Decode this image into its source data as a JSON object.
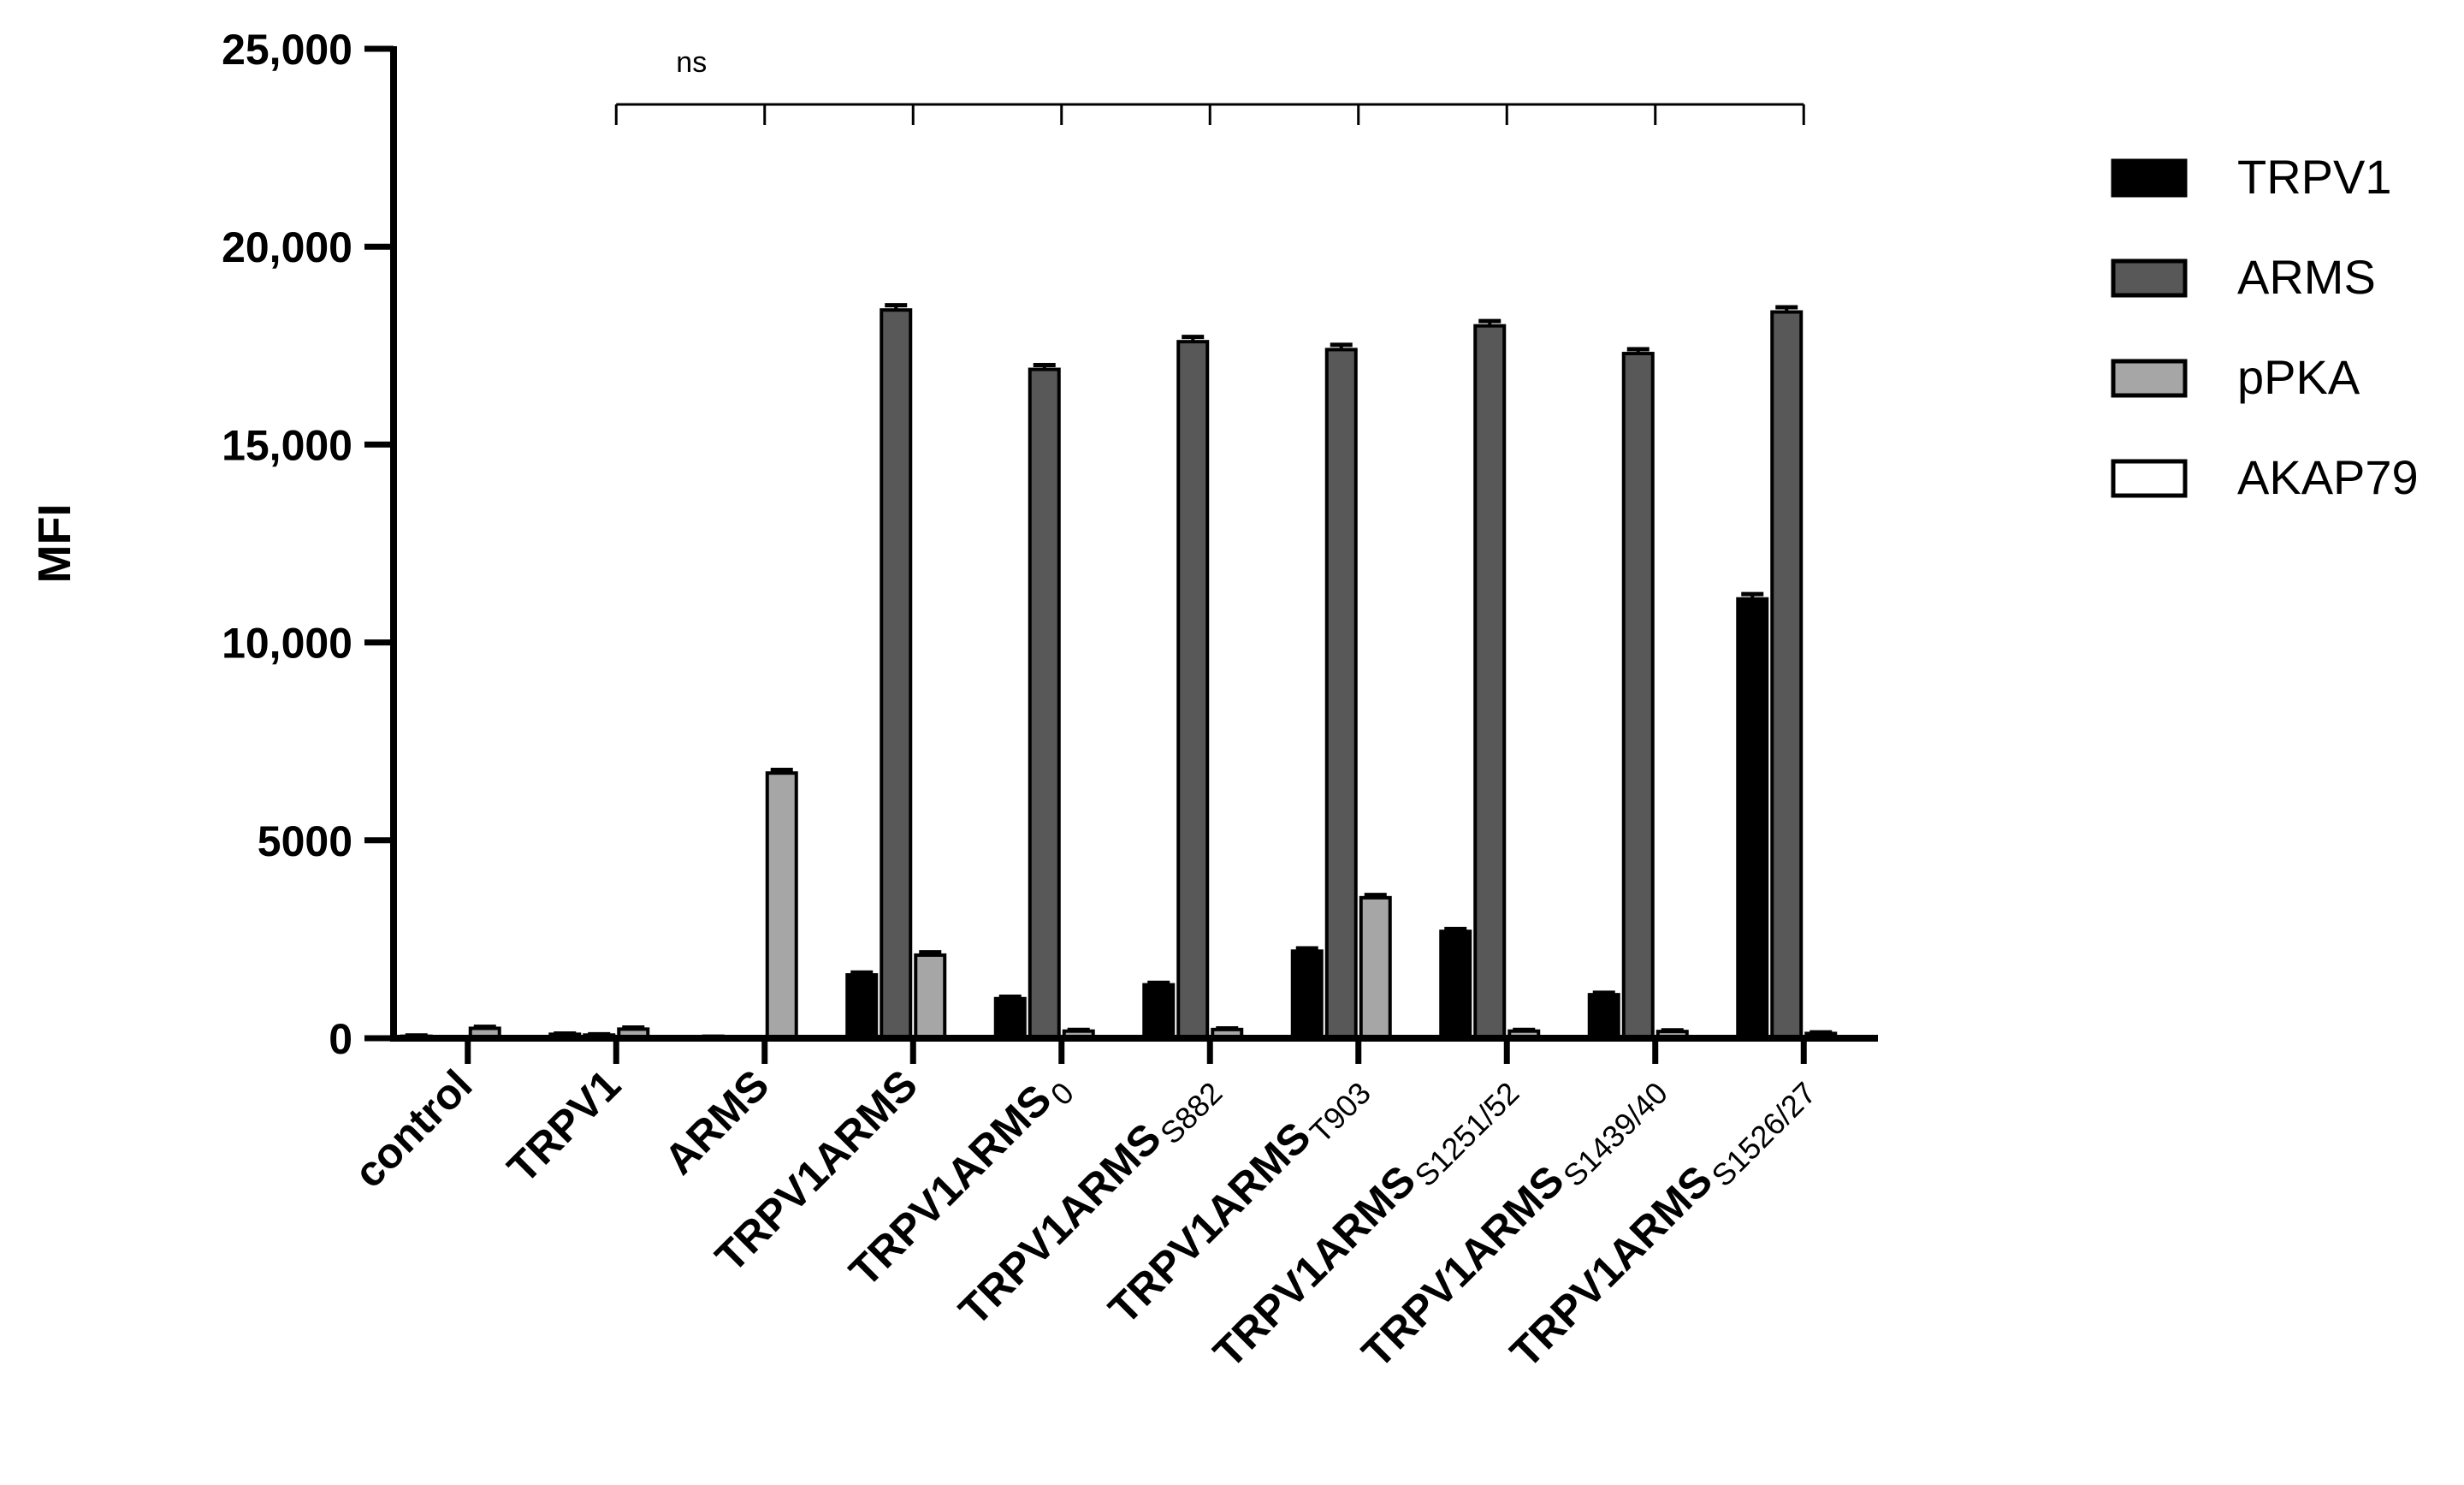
{
  "chart_data": {
    "type": "bar",
    "title": "",
    "xlabel": "",
    "ylabel": "MFI",
    "ylim": [
      0,
      25000
    ],
    "yticks": [
      0,
      5000,
      10000,
      15000,
      20000,
      25000
    ],
    "ytick_labels": [
      "0",
      "5000",
      "10,000",
      "15,000",
      "20,000",
      "25,000"
    ],
    "categories": [
      {
        "main": "control",
        "sub": ""
      },
      {
        "main": "TRPV1",
        "sub": ""
      },
      {
        "main": "ARMS",
        "sub": ""
      },
      {
        "main": "TRPV1ARMS",
        "sub": ""
      },
      {
        "main": "TRPV1ARMS",
        "sub": "0"
      },
      {
        "main": "TRPV1ARMS",
        "sub": "S882"
      },
      {
        "main": "TRPV1ARMS",
        "sub": "T903"
      },
      {
        "main": "TRPV1ARMS",
        "sub": "S1251/52"
      },
      {
        "main": "TRPV1ARMS",
        "sub": "S1439/40"
      },
      {
        "main": "TRPV1ARMS",
        "sub": "S1526/27"
      }
    ],
    "series": [
      {
        "name": "TRPV1",
        "color": "#000000",
        "values": [
          50,
          100,
          30,
          1600,
          1000,
          1350,
          2200,
          2700,
          1100,
          11100
        ]
      },
      {
        "name": "ARMS",
        "color": "#585858",
        "values": [
          0,
          80,
          0,
          18400,
          16900,
          17600,
          17400,
          18000,
          17300,
          18350
        ]
      },
      {
        "name": "pPKA",
        "color": "#a6a6a6",
        "values": [
          250,
          230,
          6700,
          2100,
          180,
          220,
          3550,
          180,
          170,
          120
        ]
      },
      {
        "name": "AKAP79",
        "color": "#ffffff",
        "values": [
          0,
          0,
          0,
          0,
          0,
          0,
          0,
          0,
          0,
          0
        ]
      }
    ],
    "errors": [
      [
        20,
        20,
        10,
        60,
        50,
        50,
        70,
        60,
        50,
        120
      ],
      [
        0,
        20,
        0,
        120,
        110,
        120,
        120,
        120,
        110,
        120
      ],
      [
        40,
        40,
        80,
        70,
        30,
        30,
        70,
        30,
        30,
        30
      ],
      [
        0,
        0,
        0,
        0,
        0,
        0,
        0,
        0,
        0,
        0
      ]
    ],
    "annotation": "ns",
    "legend_position": "right"
  }
}
